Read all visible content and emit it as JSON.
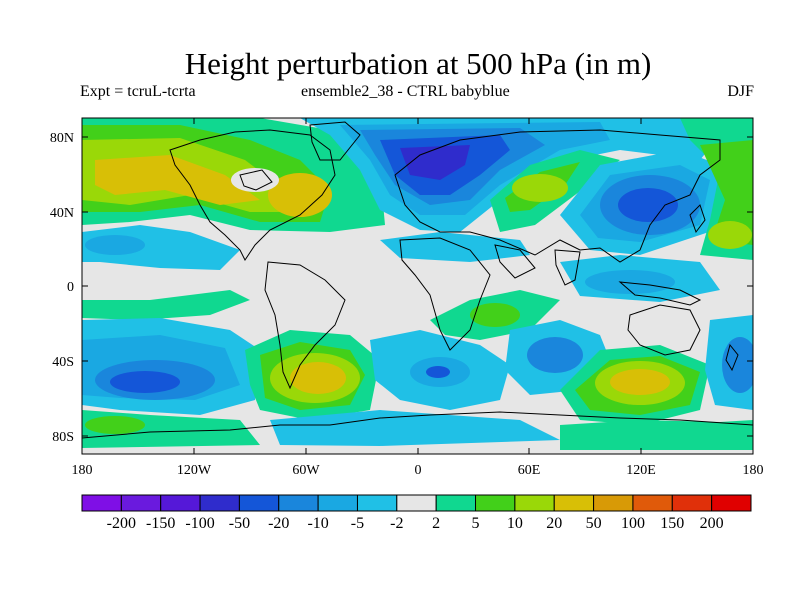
{
  "title": "Height perturbation at 500 hPa (in m)",
  "subtitle_left": "Expt = tcruL-tcrta",
  "subtitle_center": "ensemble2_38 - CTRL babyblue",
  "subtitle_right": "DJF",
  "axes": {
    "x_labels": [
      "180",
      "120W",
      "60W",
      "0",
      "60E",
      "120E",
      "180"
    ],
    "y_labels": [
      "80N",
      "40N",
      "0",
      "40S",
      "80S"
    ]
  },
  "colorbar": {
    "labels": [
      "-200",
      "-150",
      "-100",
      "-50",
      "-20",
      "-10",
      "-5",
      "-2",
      "2",
      "5",
      "10",
      "20",
      "50",
      "100",
      "150",
      "200"
    ],
    "colors": [
      "#7f0fe6",
      "#6a1ade",
      "#5518d8",
      "#2f2ccc",
      "#1456d8",
      "#1a86dc",
      "#1aa8e2",
      "#20c0e6",
      "#e6e6e6",
      "#10d890",
      "#42d01a",
      "#9ad808",
      "#d8bf06",
      "#d89a06",
      "#e05a0a",
      "#e0300a",
      "#e00000"
    ]
  },
  "colors": {
    "neutral": "#e6e6e6",
    "land_outline": "#000000"
  }
}
